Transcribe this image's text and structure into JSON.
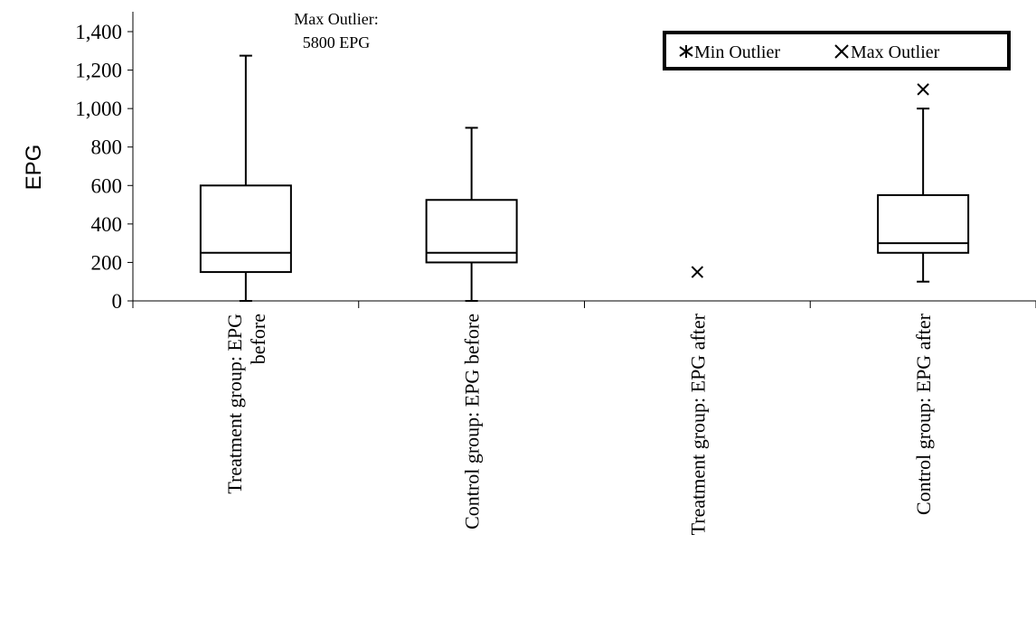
{
  "chart_data": {
    "type": "box",
    "ylabel": "EPG",
    "ylim": [
      0,
      1400
    ],
    "yticks": [
      0,
      200,
      400,
      600,
      800,
      1000,
      1200,
      1400
    ],
    "ytick_labels": [
      "0",
      "200",
      "400",
      "600",
      "800",
      "1,000",
      "1,200",
      "1,400"
    ],
    "grid": false,
    "categories": [
      [
        "Treatment group: EPG",
        "before"
      ],
      [
        "Control group: EPG before"
      ],
      [
        "Treatment group: EPG after"
      ],
      [
        "Control group: EPG after"
      ]
    ],
    "boxes": [
      {
        "min": 0,
        "q1": 150,
        "median": 250,
        "q3": 600,
        "max": 1275
      },
      {
        "min": 0,
        "q1": 200,
        "median": 250,
        "q3": 525,
        "max": 900
      },
      null,
      {
        "min": 100,
        "q1": 250,
        "median": 300,
        "q3": 550,
        "max": 1000
      }
    ],
    "outliers": [
      {
        "category_index": 2,
        "value": 150,
        "type": "max"
      },
      {
        "category_index": 3,
        "value": 1100,
        "type": "max"
      }
    ],
    "annotation": [
      "Max Outlier:",
      "5800 EPG"
    ],
    "legend": {
      "position": "top-right",
      "entries": [
        {
          "label": "Min Outlier",
          "marker": "asterisk"
        },
        {
          "label": "Max Outlier",
          "marker": "x"
        }
      ]
    }
  }
}
